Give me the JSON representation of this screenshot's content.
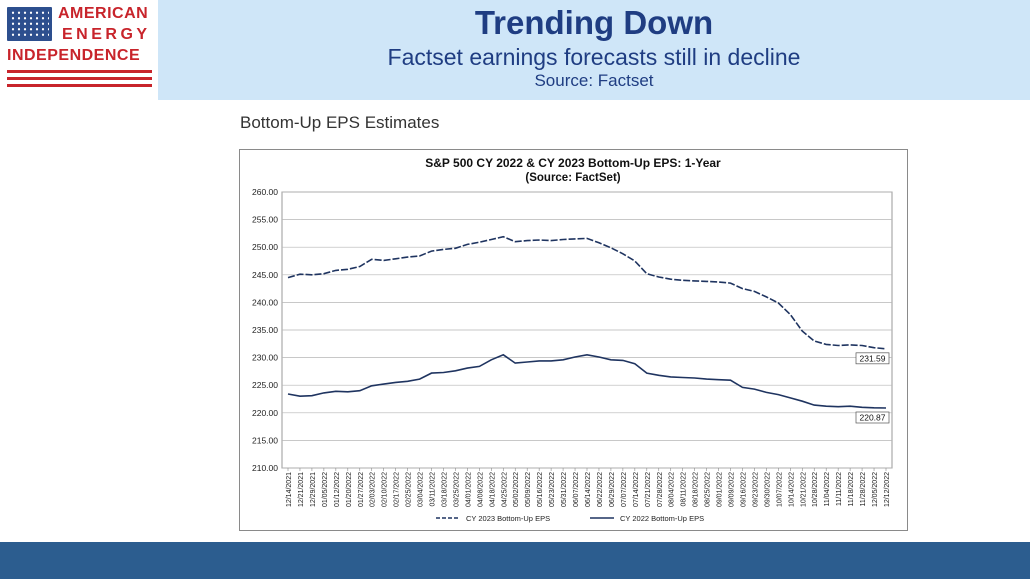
{
  "logo": {
    "line1": "AMERICAN",
    "line2": "ENERGY",
    "line3": "INDEPENDENCE"
  },
  "header": {
    "title": "Trending Down",
    "subtitle": "Factset earnings forecasts still in decline",
    "source": "Source: Factset"
  },
  "section_label": "Bottom-Up EPS Estimates",
  "colors": {
    "header_bg": "#cfe6f8",
    "title": "#1f3d82",
    "logo_red": "#c8242b",
    "footer": "#2c5d8f",
    "series_line": "#1f3460"
  },
  "chart_data": {
    "type": "line",
    "title": "S&P 500 CY 2022 & CY 2023 Bottom-Up EPS: 1-Year",
    "subtitle": "(Source: FactSet)",
    "ylim": [
      210,
      260
    ],
    "yticks": [
      "260.00",
      "255.00",
      "250.00",
      "245.00",
      "240.00",
      "235.00",
      "230.00",
      "225.00",
      "220.00",
      "215.00",
      "210.00"
    ],
    "grid": true,
    "legend_position": "bottom",
    "x": [
      "12/14/2021",
      "12/21/2021",
      "12/29/2021",
      "01/05/2022",
      "01/12/2022",
      "01/20/2022",
      "01/27/2022",
      "02/03/2022",
      "02/10/2022",
      "02/17/2022",
      "02/25/2022",
      "03/04/2022",
      "03/11/2022",
      "03/18/2022",
      "03/25/2022",
      "04/01/2022",
      "04/08/2022",
      "04/18/2022",
      "04/25/2022",
      "05/02/2022",
      "05/09/2022",
      "05/16/2022",
      "05/23/2022",
      "05/31/2022",
      "06/07/2022",
      "06/14/2022",
      "06/22/2022",
      "06/29/2022",
      "07/07/2022",
      "07/14/2022",
      "07/21/2022",
      "07/28/2022",
      "08/04/2022",
      "08/11/2022",
      "08/18/2022",
      "08/25/2022",
      "09/01/2022",
      "09/09/2022",
      "09/16/2022",
      "09/23/2022",
      "09/30/2022",
      "10/07/2022",
      "10/14/2022",
      "10/21/2022",
      "10/28/2022",
      "11/04/2022",
      "11/11/2022",
      "11/18/2022",
      "11/28/2022",
      "12/05/2022",
      "12/12/2022"
    ],
    "series": [
      {
        "name": "CY 2023 Bottom-Up EPS",
        "dash": true,
        "values": [
          244.5,
          245.1,
          245.0,
          245.2,
          245.8,
          246.0,
          246.5,
          247.8,
          247.6,
          247.9,
          248.2,
          248.4,
          249.3,
          249.6,
          249.8,
          250.5,
          250.9,
          251.4,
          251.9,
          251.0,
          251.2,
          251.3,
          251.2,
          251.4,
          251.5,
          251.6,
          250.8,
          249.9,
          248.8,
          247.5,
          245.2,
          244.6,
          244.2,
          244.0,
          243.9,
          243.8,
          243.7,
          243.5,
          242.5,
          242.0,
          241.0,
          239.9,
          237.8,
          234.8,
          233.0,
          232.4,
          232.2,
          232.3,
          232.2,
          231.8,
          231.59
        ],
        "end_label": "231.59"
      },
      {
        "name": "CY 2022 Bottom-Up EPS",
        "dash": false,
        "values": [
          223.4,
          223.0,
          223.1,
          223.6,
          223.9,
          223.8,
          224.0,
          224.9,
          225.2,
          225.5,
          225.7,
          226.1,
          227.2,
          227.3,
          227.6,
          228.1,
          228.4,
          229.6,
          230.5,
          229.0,
          229.2,
          229.4,
          229.4,
          229.6,
          230.1,
          230.5,
          230.1,
          229.6,
          229.5,
          228.9,
          227.2,
          226.8,
          226.5,
          226.4,
          226.3,
          226.1,
          226.0,
          225.9,
          224.6,
          224.3,
          223.7,
          223.3,
          222.7,
          222.1,
          221.4,
          221.2,
          221.1,
          221.2,
          221.0,
          220.9,
          220.87
        ],
        "end_label": "220.87"
      }
    ]
  }
}
